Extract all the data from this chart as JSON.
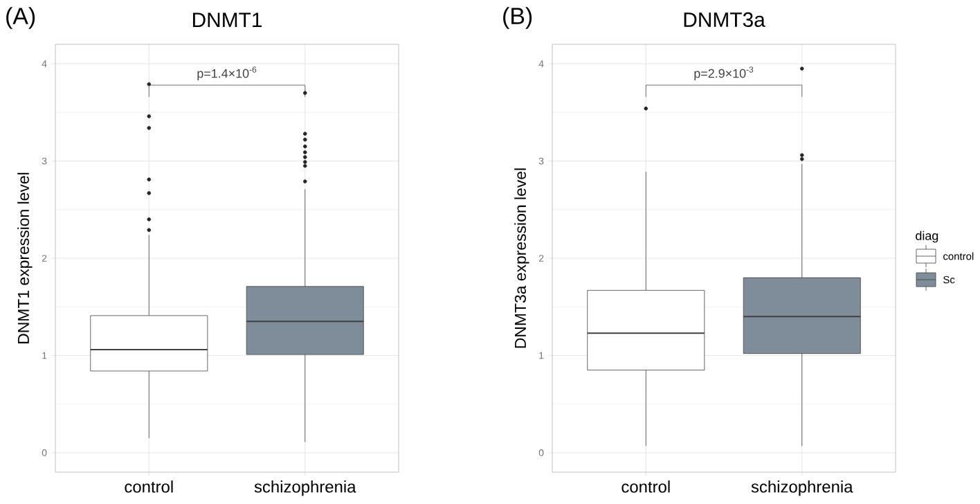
{
  "chart_data": [
    {
      "type": "box",
      "title": "DNMT1",
      "ylabel": "DNMT1 expression level",
      "categories": [
        "control",
        "schizophrenia"
      ],
      "series": [
        {
          "color": "#ffffff",
          "boxes": [
            {
              "low": 0.15,
              "q1": 0.84,
              "median": 1.06,
              "q3": 1.41,
              "high": 2.24,
              "outliers": [
                3.79,
                3.46,
                3.34,
                2.81,
                2.67,
                2.4,
                2.29
              ]
            },
            null
          ]
        },
        {
          "color": "#7f8c99",
          "boxes": [
            null,
            {
              "low": 0.11,
              "q1": 1.01,
              "median": 1.35,
              "q3": 1.71,
              "high": 2.71,
              "outliers": [
                3.7,
                3.28,
                3.22,
                3.15,
                3.09,
                3.04,
                2.99,
                2.95,
                2.79
              ]
            }
          ]
        }
      ],
      "ylim": [
        -0.2,
        4.2
      ],
      "yticks": [
        0,
        1,
        2,
        3,
        4
      ],
      "grid": true,
      "legend": false,
      "annotations": [
        "(A)",
        "p=1.4×10$^{-6}$"
      ]
    },
    {
      "type": "box",
      "title": "DNMT3a",
      "ylabel": "DNMT3a expression level",
      "categories": [
        "control",
        "schizophrenia"
      ],
      "series": [
        {
          "name": "control",
          "color": "#ffffff",
          "boxes": [
            {
              "low": 0.07,
              "q1": 0.85,
              "median": 1.23,
              "q3": 1.67,
              "high": 2.89,
              "outliers": [
                3.54
              ]
            },
            null
          ]
        },
        {
          "name": "Sc",
          "color": "#7f8c99",
          "boxes": [
            null,
            {
              "low": 0.07,
              "q1": 1.02,
              "median": 1.4,
              "q3": 1.8,
              "high": 2.97,
              "outliers": [
                3.95,
                3.06,
                3.02
              ]
            }
          ]
        }
      ],
      "ylim": [
        -0.2,
        4.2
      ],
      "yticks": [
        0,
        1,
        2,
        3,
        4
      ],
      "grid": true,
      "legend": "right",
      "legend_title": "diag",
      "annotations": [
        "(B)",
        "p=2.9×10$^{-3}$"
      ]
    }
  ]
}
